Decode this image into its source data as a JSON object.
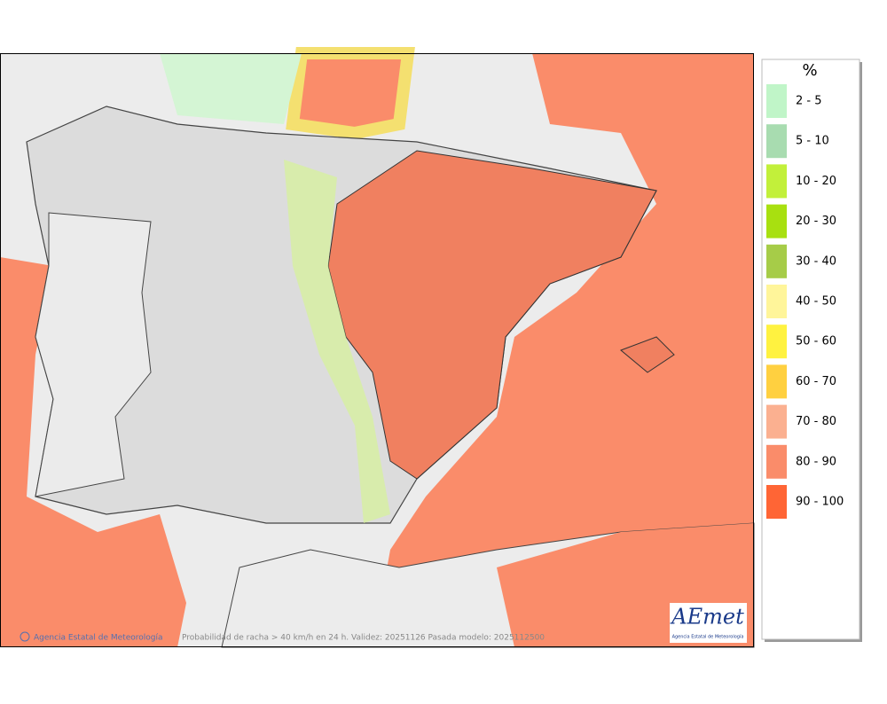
{
  "legend": {
    "title": "%",
    "items": [
      {
        "label": "2 - 5",
        "color": "#c0f5c8"
      },
      {
        "label": "5 - 10",
        "color": "#a8dcb0"
      },
      {
        "label": "10 - 20",
        "color": "#c2f03a"
      },
      {
        "label": "20 - 30",
        "color": "#a8e010"
      },
      {
        "label": "30 - 40",
        "color": "#a6cc48"
      },
      {
        "label": "40 - 50",
        "color": "#fff59a"
      },
      {
        "label": "50 - 60",
        "color": "#fff240"
      },
      {
        "label": "60 - 70",
        "color": "#ffd040"
      },
      {
        "label": "70 - 80",
        "color": "#fbb090"
      },
      {
        "label": "80 - 90",
        "color": "#fa8c6a"
      },
      {
        "label": "90 - 100",
        "color": "#ff6535"
      }
    ]
  },
  "footer": {
    "credit": "Agencia Estatal de Meteorología",
    "caption": "Probabilidad de racha > 40 km/h en 24 h. Validez: 20251126 Pasada modelo: 2025112500"
  },
  "logo": {
    "name": "AEmet",
    "subtitle": "Agencia Estatal de Meteorología"
  }
}
